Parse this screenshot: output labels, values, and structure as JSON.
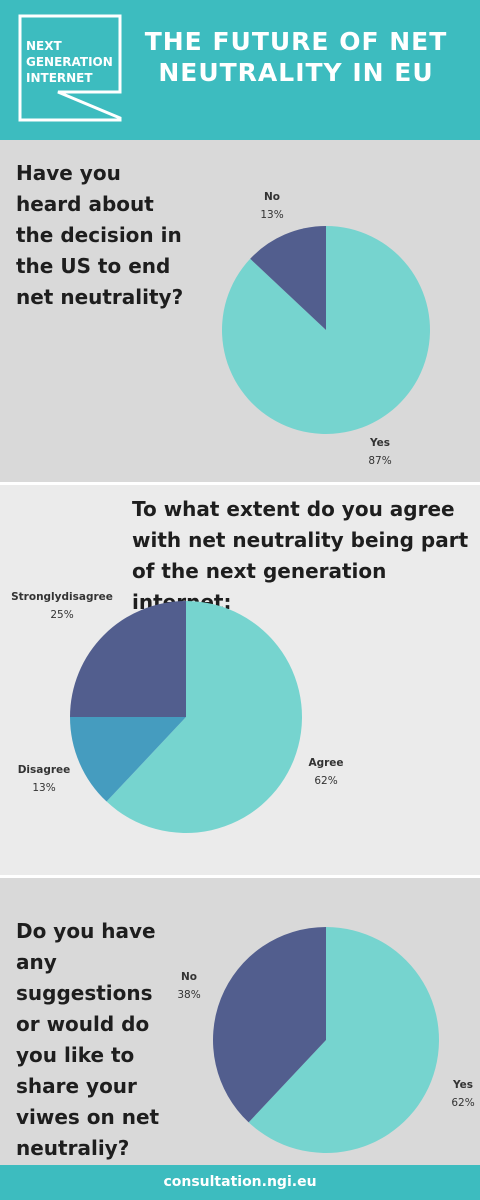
{
  "header": {
    "logo": [
      "NEXT",
      "GENERATION",
      "INTERNET"
    ],
    "title": "THE FUTURE OF NET NEUTRALITY IN EU"
  },
  "chart_data": [
    {
      "type": "pie",
      "title": "Have you heard about the decision in the US to end net neutrality?",
      "categories": [
        "Yes",
        "No"
      ],
      "values": [
        87,
        13
      ],
      "value_labels": [
        "87%",
        "13%"
      ],
      "colors": [
        "#76d4cf",
        "#525e8e"
      ]
    },
    {
      "type": "pie",
      "title": "To what extent do you agree with net neutrality being part of the next generation internet:",
      "categories": [
        "Agree",
        "Disagree",
        "Stronglydisagree"
      ],
      "values": [
        62,
        13,
        25
      ],
      "value_labels": [
        "62%",
        "13%",
        "25%"
      ],
      "colors": [
        "#76d4cf",
        "#459cbf",
        "#525e8e"
      ]
    },
    {
      "type": "pie",
      "title": "Do you have any suggestions or would do you like to share your viwes on net neutraliy?",
      "categories": [
        "Yes",
        "No"
      ],
      "values": [
        62,
        38
      ],
      "value_labels": [
        "62%",
        "38%"
      ],
      "colors": [
        "#76d4cf",
        "#525e8e"
      ]
    }
  ],
  "footer": "consultation.ngi.eu"
}
